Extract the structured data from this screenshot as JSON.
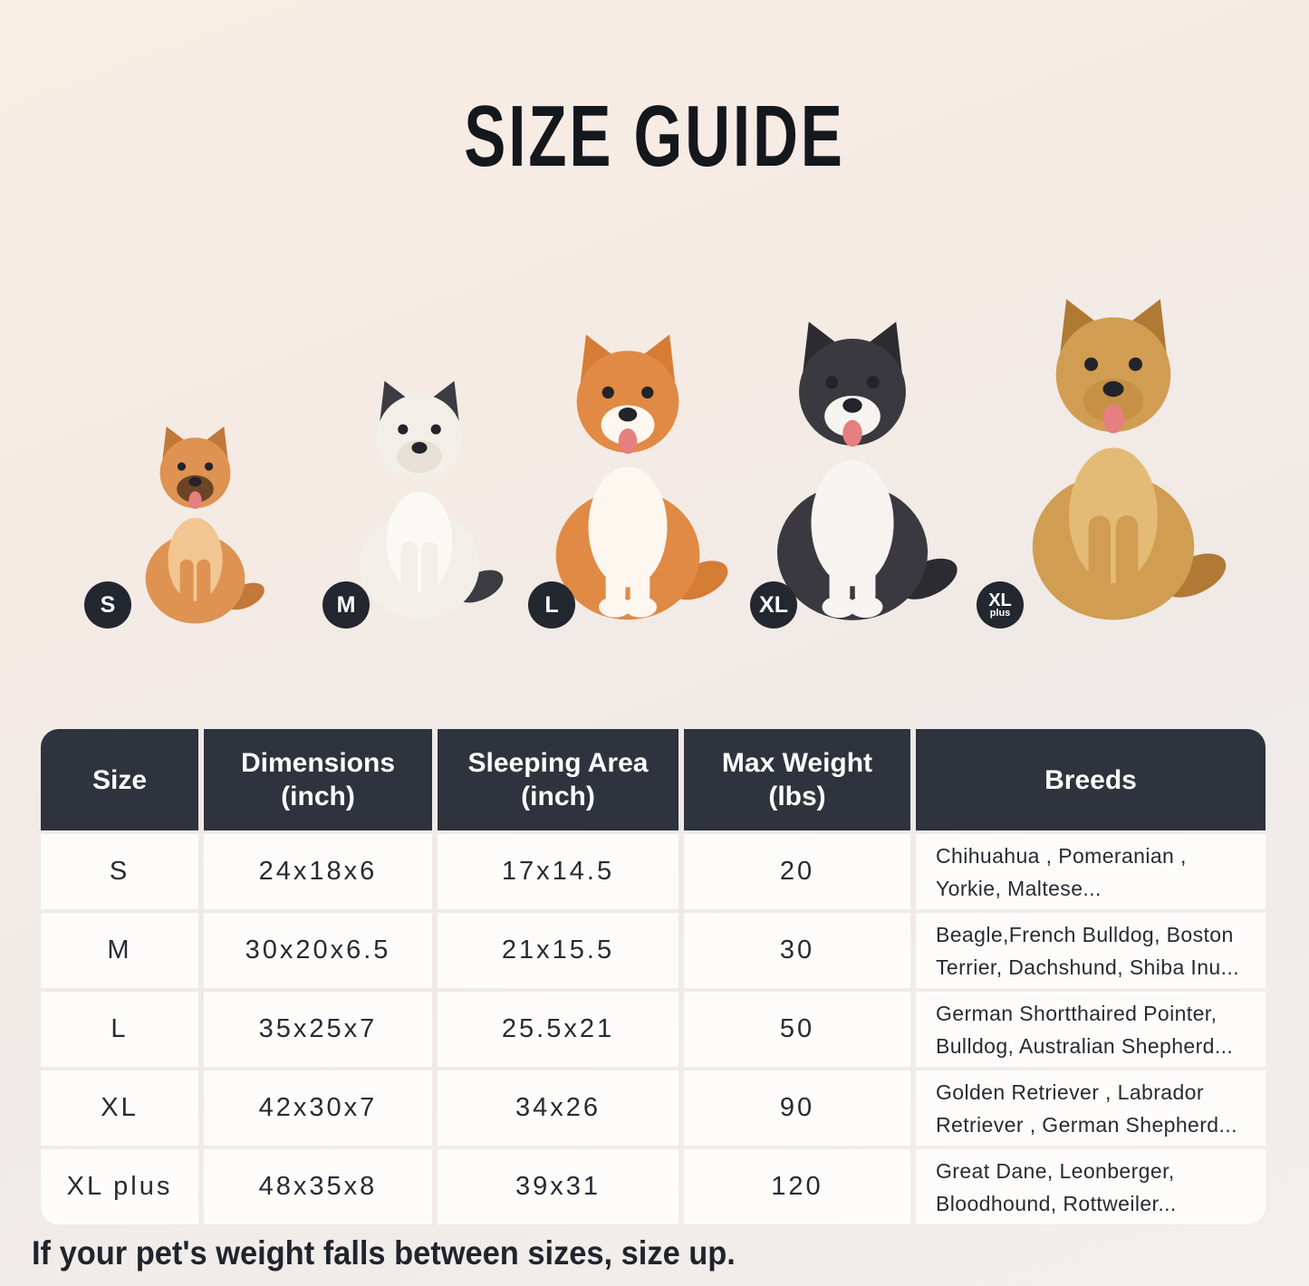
{
  "page": {
    "title": "SIZE GUIDE",
    "note": "If your pet's weight falls between sizes, size up."
  },
  "colors": {
    "background_top": "#f8ede3",
    "background_bottom": "#f1efed",
    "header_bg": "#2e333d",
    "cell_bg": "#fdfcfb",
    "badge_bg": "#23272f",
    "title_color": "#14171c",
    "body_text": "#262b33"
  },
  "dogs": [
    {
      "name": "pomeranian",
      "badge": {
        "label": "S"
      },
      "mouth_open": true,
      "colors": {
        "body": "#de9352",
        "chest": "#f2c693",
        "legs": "#de9352",
        "ears": "#c2783a",
        "muzzle": "#6b4526"
      }
    },
    {
      "name": "french-bulldog",
      "badge": {
        "label": "M"
      },
      "mouth_open": false,
      "colors": {
        "body": "#f2eee8",
        "chest": "#fbf9f6",
        "legs": "#f2eee8",
        "ears": "#3b3b41",
        "muzzle": "#e8e0d6"
      }
    },
    {
      "name": "shiba-inu",
      "badge": {
        "label": "L"
      },
      "mouth_open": true,
      "colors": {
        "body": "#e08a45",
        "chest": "#fdf7ef",
        "legs": "#fdf7ef",
        "ears": "#d57c35",
        "muzzle": "#fdf7ef"
      }
    },
    {
      "name": "border-collie",
      "badge": {
        "label": "XL"
      },
      "mouth_open": true,
      "colors": {
        "body": "#3a393f",
        "chest": "#f6f4f1",
        "legs": "#f6f4f1",
        "ears": "#2c2b30",
        "muzzle": "#f6f4f1"
      }
    },
    {
      "name": "golden-retriever",
      "badge": {
        "label": "XL",
        "sub": "plus"
      },
      "mouth_open": true,
      "colors": {
        "body": "#d19d52",
        "chest": "#e3bb76",
        "legs": "#d19d52",
        "ears": "#b07a35",
        "muzzle": "#c69147"
      }
    }
  ],
  "table": {
    "headers": [
      {
        "line1": "Size",
        "line2": ""
      },
      {
        "line1": "Dimensions",
        "line2": "(inch)"
      },
      {
        "line1": "Sleeping Area",
        "line2": "(inch)"
      },
      {
        "line1": "Max Weight",
        "line2": "(lbs)"
      },
      {
        "line1": "Breeds",
        "line2": ""
      }
    ],
    "rows": [
      {
        "size": "S",
        "dimensions": "24x18x6",
        "sleeping_area": "17x14.5",
        "max_weight": "20",
        "breeds": "Chihuahua , Pomeranian , Yorkie, Maltese..."
      },
      {
        "size": "M",
        "dimensions": "30x20x6.5",
        "sleeping_area": "21x15.5",
        "max_weight": "30",
        "breeds": "Beagle,French Bulldog, Boston Terrier, Dachshund, Shiba Inu..."
      },
      {
        "size": "L",
        "dimensions": "35x25x7",
        "sleeping_area": "25.5x21",
        "max_weight": "50",
        "breeds": "German Shortthaired Pointer, Bulldog, Australian Shepherd..."
      },
      {
        "size": "XL",
        "dimensions": "42x30x7",
        "sleeping_area": "34x26",
        "max_weight": "90",
        "breeds": "Golden Retriever , Labrador Retriever , German Shepherd..."
      },
      {
        "size": "XL plus",
        "dimensions": "48x35x8",
        "sleeping_area": "39x31",
        "max_weight": "120",
        "breeds": "Great Dane, Leonberger, Bloodhound, Rottweiler..."
      }
    ]
  }
}
